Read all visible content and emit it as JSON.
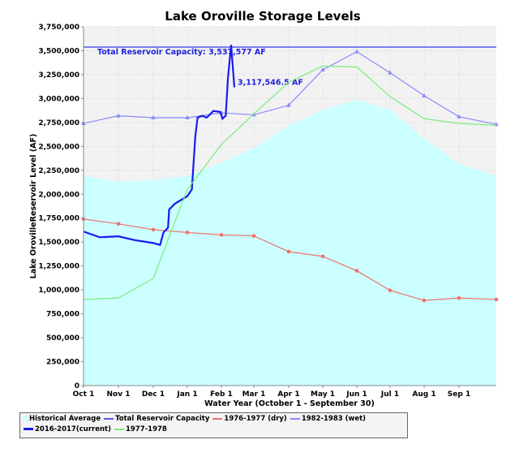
{
  "chart_data": {
    "type": "line",
    "title": "Lake Oroville Storage Levels",
    "xlabel": "Water Year (October 1 - September 30)",
    "ylabel": "Lake OrovilleReservoir Level (AF)",
    "ylim": [
      0,
      3750000
    ],
    "yticks": [
      "0",
      "250,000",
      "500,000",
      "750,000",
      "1,000,000",
      "1,250,000",
      "1,500,000",
      "1,750,000",
      "2,000,000",
      "2,250,000",
      "2,500,000",
      "2,750,000",
      "3,000,000",
      "3,250,000",
      "3,500,000",
      "3,750,000"
    ],
    "xticks": [
      "Oct 1",
      "Nov 1",
      "Dec 1",
      "Jan 1",
      "Feb 1",
      "Mar 1",
      "Apr 1",
      "May 1",
      "Jun 1",
      "Jul 1",
      "Aug 1",
      "Sep 1"
    ],
    "grid": true,
    "legend_placement": "bottom",
    "monthly_x": [
      "Oct 1",
      "Nov 1",
      "Dec 1",
      "Jan 1",
      "Feb 1",
      "Mar 1",
      "Apr 1",
      "May 1",
      "Jun 1",
      "Jul 1",
      "Aug 1",
      "Sep 1",
      "Sep 30"
    ],
    "series": [
      {
        "name": "Historical Average",
        "kind": "area",
        "color": "#ccffff",
        "values": [
          2190000,
          2130000,
          2150000,
          2190000,
          2330000,
          2480000,
          2720000,
          2880000,
          2990000,
          2880000,
          2580000,
          2320000,
          2190000
        ]
      },
      {
        "name": "Total Reservoir Capacity",
        "kind": "hline",
        "color": "#5555ee",
        "value": 3537577,
        "annotation": "Total Reservoir Capacity: 3,537,577 AF"
      },
      {
        "name": "1976-1977 (dry)",
        "kind": "line",
        "marker": "circle",
        "color": "#f07070",
        "values": [
          1740000,
          1690000,
          1630000,
          1600000,
          1575000,
          1565000,
          1400000,
          1350000,
          1200000,
          995000,
          890000,
          915000,
          900000
        ]
      },
      {
        "name": "1982-1983 (wet)",
        "kind": "line",
        "marker": "triangle",
        "color": "#8888ff",
        "values": [
          2740000,
          2820000,
          2800000,
          2800000,
          2850000,
          2830000,
          2930000,
          3300000,
          3490000,
          3270000,
          3030000,
          2810000,
          2730000
        ]
      },
      {
        "name": "2016-2017(current)",
        "kind": "daily",
        "color": "#1a1aee",
        "points": [
          [
            "Oct 1",
            1610000
          ],
          [
            "Oct 15",
            1550000
          ],
          [
            "Nov 1",
            1560000
          ],
          [
            "Nov 15",
            1520000
          ],
          [
            "Dec 1",
            1490000
          ],
          [
            "Dec 7",
            1470000
          ],
          [
            "Dec 10",
            1600000
          ],
          [
            "Dec 14",
            1650000
          ],
          [
            "Dec 15",
            1840000
          ],
          [
            "Dec 20",
            1900000
          ],
          [
            "Jan 1",
            1980000
          ],
          [
            "Jan 5",
            2050000
          ],
          [
            "Jan 8",
            2600000
          ],
          [
            "Jan 10",
            2800000
          ],
          [
            "Jan 14",
            2820000
          ],
          [
            "Jan 18",
            2800000
          ],
          [
            "Jan 24",
            2870000
          ],
          [
            "Jan 30",
            2860000
          ],
          [
            "Feb 2",
            2790000
          ],
          [
            "Feb 5",
            2820000
          ],
          [
            "Feb 7",
            3200000
          ],
          [
            "Feb 10",
            3560000
          ],
          [
            "Feb 13",
            3117546.5
          ]
        ],
        "annotation": "3,117,546.5 AF"
      },
      {
        "name": "1977-1978",
        "kind": "line",
        "color": "#77ee77",
        "values": [
          900000,
          915000,
          1120000,
          2050000,
          2520000,
          2840000,
          3170000,
          3340000,
          3330000,
          3020000,
          2790000,
          2740000,
          2720000
        ]
      }
    ]
  }
}
